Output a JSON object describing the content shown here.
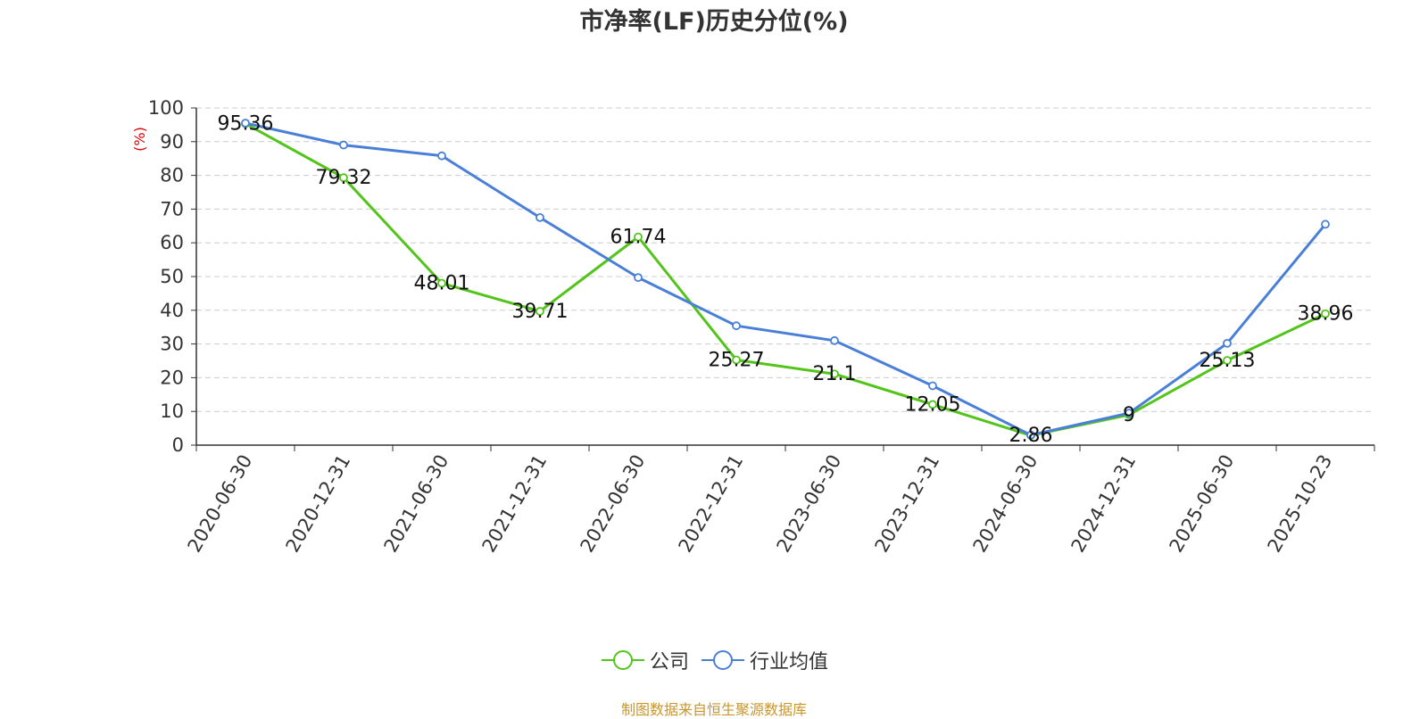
{
  "chart_data": {
    "type": "line",
    "title": "市净率(LF)历史分位(%)",
    "ylabel": "(%)",
    "xlabel": "",
    "ylim": [
      0,
      100
    ],
    "yticks": [
      0,
      10,
      20,
      30,
      40,
      50,
      60,
      70,
      80,
      90,
      100
    ],
    "grid": true,
    "legend_position": "bottom",
    "categories": [
      "2020-06-30",
      "2020-12-31",
      "2021-06-30",
      "2021-12-31",
      "2022-06-30",
      "2022-12-31",
      "2023-06-30",
      "2023-12-31",
      "2024-06-30",
      "2024-12-31",
      "2025-06-30",
      "2025-10-23"
    ],
    "series": [
      {
        "name": "公司",
        "color": "#52c41a",
        "values": [
          95.36,
          79.32,
          48.01,
          39.71,
          61.74,
          25.27,
          21.1,
          12.05,
          2.86,
          9,
          25.13,
          38.96
        ],
        "labels": [
          "95.36",
          "79.32",
          "48.01",
          "39.71",
          "61.74",
          "25.27",
          "21.1",
          "12.05",
          "2.86",
          "9",
          "25.13",
          "38.96"
        ]
      },
      {
        "name": "行业均值",
        "color": "#4a7fd8",
        "values": [
          95.5,
          89,
          85.8,
          67.5,
          49.7,
          35.4,
          31,
          17.6,
          3,
          9.5,
          30.2,
          65.5
        ]
      }
    ]
  },
  "footer": {
    "source": "制图数据来自恒生聚源数据库"
  },
  "colors": {
    "axis": "#333333",
    "grid": "#cccccc",
    "ylabel": "#e00000",
    "source": "#c9962f"
  }
}
